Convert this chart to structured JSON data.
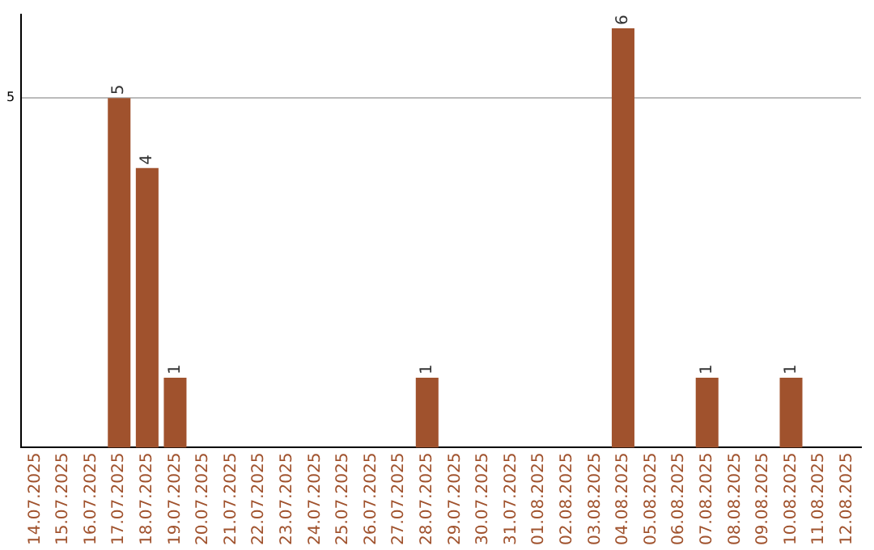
{
  "chart_data": {
    "type": "bar",
    "categories": [
      "14.07.2025",
      "15.07.2025",
      "16.07.2025",
      "17.07.2025",
      "18.07.2025",
      "19.07.2025",
      "20.07.2025",
      "21.07.2025",
      "22.07.2025",
      "23.07.2025",
      "24.07.2025",
      "25.07.2025",
      "26.07.2025",
      "27.07.2025",
      "28.07.2025",
      "29.07.2025",
      "30.07.2025",
      "31.07.2025",
      "01.08.2025",
      "02.08.2025",
      "03.08.2025",
      "04.08.2025",
      "05.08.2025",
      "06.08.2025",
      "07.08.2025",
      "08.08.2025",
      "09.08.2025",
      "10.08.2025",
      "11.08.2025",
      "12.08.2025"
    ],
    "values": [
      0,
      0,
      0,
      5,
      4,
      1,
      0,
      0,
      0,
      0,
      0,
      0,
      0,
      0,
      1,
      0,
      0,
      0,
      0,
      0,
      0,
      6,
      0,
      0,
      1,
      0,
      0,
      1,
      0,
      0
    ],
    "value_labels": [
      null,
      null,
      null,
      "5",
      "4",
      "1",
      null,
      null,
      null,
      null,
      null,
      null,
      null,
      null,
      "1",
      null,
      null,
      null,
      null,
      null,
      null,
      "6",
      null,
      null,
      "1",
      null,
      null,
      "1",
      null,
      null
    ],
    "color": "#a0522d",
    "ylim": [
      0,
      6.2
    ],
    "yticks": [
      5
    ],
    "grid": "y",
    "legend": false
  }
}
